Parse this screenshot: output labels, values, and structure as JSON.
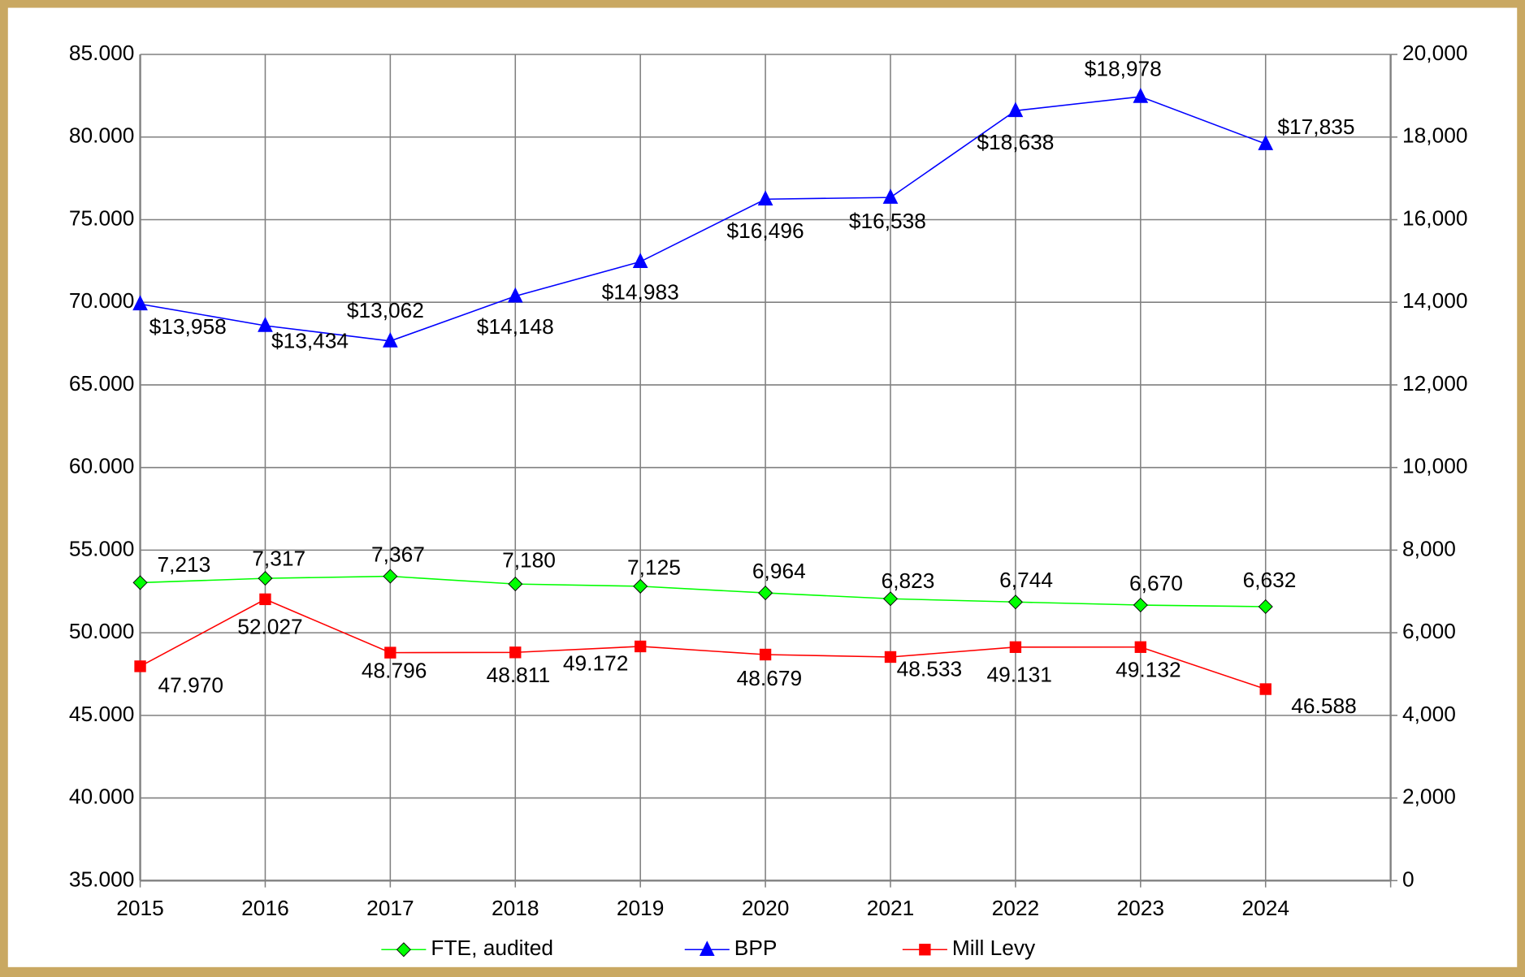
{
  "chart_data": {
    "type": "line",
    "categories": [
      "2015",
      "2016",
      "2017",
      "2018",
      "2019",
      "2020",
      "2021",
      "2022",
      "2023",
      "2024"
    ],
    "series": [
      {
        "name": "FTE, audited",
        "color": "#00ff00",
        "marker": "diamond",
        "axis": "y2",
        "values": [
          7213,
          7317,
          7367,
          7180,
          7125,
          6964,
          6823,
          6744,
          6670,
          6632
        ],
        "value_labels": [
          "7,213",
          "7,317",
          "7,367",
          "7,180",
          "7,125",
          "6,964",
          "6,823",
          "6,744",
          "6,670",
          "6,632"
        ]
      },
      {
        "name": "BPP",
        "color": "#0000ff",
        "marker": "triangle",
        "axis": "y2",
        "values": [
          13958,
          13434,
          13062,
          14148,
          14983,
          16496,
          16538,
          18638,
          18978,
          17835
        ],
        "value_labels": [
          "$13,958",
          "$13,434",
          "$13,062",
          "$14,148",
          "$14,983",
          "$16,496",
          "$16,538",
          "$18,638",
          "$18,978",
          "$17,835"
        ]
      },
      {
        "name": "Mill Levy",
        "color": "#ff0000",
        "marker": "square",
        "values": [
          47.97,
          52.027,
          48.796,
          48.811,
          49.172,
          48.679,
          48.533,
          49.131,
          49.132,
          46.588
        ],
        "value_labels": [
          "47.970",
          "52.027",
          "48.796",
          "48.811",
          "49.172",
          "48.679",
          "48.533",
          "49.131",
          "49.132",
          "46.588"
        ]
      }
    ],
    "ylim": [
      35,
      85
    ],
    "yticks": [
      {
        "value": 35,
        "label": "35.000"
      },
      {
        "value": 40,
        "label": "40.000"
      },
      {
        "value": 45,
        "label": "45.000"
      },
      {
        "value": 50,
        "label": "50.000"
      },
      {
        "value": 55,
        "label": "55.000"
      },
      {
        "value": 60,
        "label": "60.000"
      },
      {
        "value": 65,
        "label": "65.000"
      },
      {
        "value": 70,
        "label": "70.000"
      },
      {
        "value": 75,
        "label": "75.000"
      },
      {
        "value": 80,
        "label": "80.000"
      },
      {
        "value": 85,
        "label": "85.000"
      }
    ],
    "y2lim": [
      0,
      20000
    ],
    "y2ticks": [
      0,
      {
        "value": 2000,
        "label": "2,000"
      },
      {
        "value": 4000,
        "label": "4,000"
      },
      {
        "value": 6000,
        "label": "6,000"
      },
      {
        "value": 8000,
        "label": "8,000"
      },
      {
        "value": 10000,
        "label": "10,000"
      },
      {
        "value": 12000,
        "label": "12,000"
      },
      {
        "value": 14000,
        "label": "14,000"
      },
      {
        "value": 16000,
        "label": "16,000"
      },
      {
        "value": 18000,
        "label": "18,000"
      },
      {
        "value": 20000,
        "label": "20,000"
      }
    ],
    "grid": true,
    "legend": "bottom"
  }
}
